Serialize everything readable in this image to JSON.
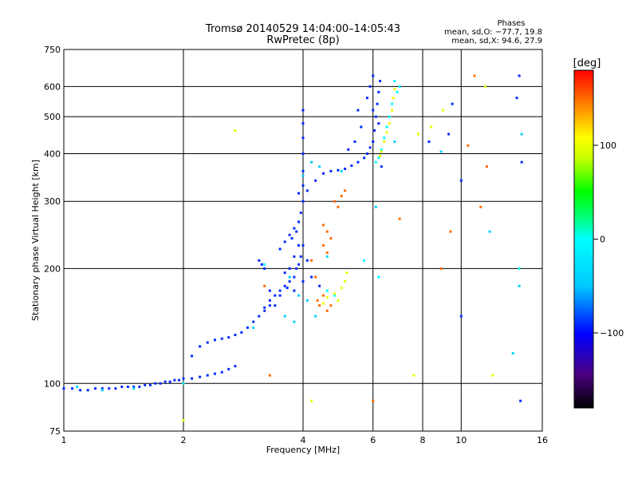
{
  "chart_data": {
    "type": "scatter",
    "title": "Tromsø 20140529 14:04:00–14:05:43",
    "subtitle": "RwPretec (8p)",
    "xlabel": "Frequency [MHz]",
    "ylabel": "Stationary phase Virtual Height [km]",
    "x_scale": "log",
    "y_scale": "log",
    "xlim": [
      1,
      16
    ],
    "ylim": [
      75,
      750
    ],
    "x_ticks": [
      1,
      2,
      4,
      6,
      8,
      10,
      16
    ],
    "x_tick_labels": [
      "1",
      "2",
      "4",
      "6",
      "8",
      "10",
      "16"
    ],
    "y_ticks": [
      75,
      100,
      200,
      300,
      400,
      500,
      600,
      750
    ],
    "y_tick_labels": [
      "75",
      "100",
      "200",
      "300",
      "400",
      "500",
      "600",
      "750"
    ],
    "grid": true,
    "phases": {
      "heading": "Phases",
      "line1": "mean, sd,O: −77.7, 19.8",
      "line2": "mean, sd,X:  94.6, 27.9"
    },
    "colorbar": {
      "label": "[deg]",
      "range": [
        -180,
        180
      ],
      "tick_values": [
        100,
        0,
        -100
      ],
      "tick_labels": [
        "100",
        "0",
        "−100"
      ]
    },
    "series": [
      {
        "color_phase": -90,
        "points": [
          [
            1.0,
            97
          ],
          [
            1.05,
            97
          ],
          [
            1.1,
            96
          ],
          [
            1.15,
            96
          ],
          [
            1.2,
            97
          ],
          [
            1.25,
            97
          ],
          [
            1.3,
            97
          ],
          [
            1.35,
            97
          ],
          [
            1.4,
            98
          ],
          [
            1.45,
            98
          ],
          [
            1.5,
            98
          ],
          [
            1.55,
            98
          ],
          [
            1.6,
            99
          ],
          [
            1.65,
            99
          ],
          [
            1.7,
            100
          ],
          [
            1.75,
            100
          ],
          [
            1.8,
            101
          ],
          [
            1.85,
            101
          ],
          [
            1.9,
            102
          ],
          [
            1.95,
            102
          ],
          [
            2.0,
            103
          ],
          [
            2.1,
            103
          ],
          [
            2.2,
            104
          ],
          [
            2.3,
            105
          ],
          [
            2.4,
            106
          ],
          [
            2.5,
            107
          ],
          [
            2.6,
            109
          ],
          [
            2.7,
            111
          ],
          [
            2.1,
            118
          ],
          [
            2.2,
            125
          ],
          [
            2.3,
            128
          ],
          [
            2.4,
            130
          ],
          [
            2.5,
            131
          ],
          [
            2.6,
            132
          ],
          [
            2.7,
            134
          ],
          [
            2.8,
            136
          ],
          [
            2.9,
            140
          ],
          [
            3.0,
            145
          ],
          [
            3.1,
            150
          ],
          [
            3.2,
            158
          ],
          [
            3.3,
            165
          ],
          [
            3.4,
            170
          ],
          [
            3.5,
            175
          ],
          [
            3.6,
            180
          ],
          [
            3.7,
            185
          ],
          [
            3.8,
            190
          ],
          [
            3.85,
            200
          ],
          [
            3.9,
            205
          ],
          [
            3.1,
            210
          ],
          [
            3.15,
            205
          ],
          [
            3.2,
            200
          ],
          [
            3.5,
            225
          ],
          [
            3.6,
            235
          ],
          [
            3.7,
            245
          ],
          [
            3.8,
            255
          ],
          [
            3.9,
            265
          ],
          [
            3.95,
            280
          ],
          [
            4.0,
            300
          ],
          [
            4.0,
            330
          ],
          [
            4.0,
            360
          ],
          [
            4.0,
            400
          ],
          [
            4.0,
            440
          ],
          [
            4.0,
            480
          ],
          [
            4.0,
            520
          ],
          [
            4.1,
            320
          ],
          [
            4.3,
            340
          ],
          [
            4.5,
            355
          ],
          [
            4.7,
            360
          ],
          [
            4.9,
            362
          ],
          [
            5.1,
            365
          ],
          [
            5.3,
            372
          ],
          [
            5.5,
            380
          ],
          [
            5.7,
            390
          ],
          [
            5.8,
            400
          ],
          [
            5.9,
            415
          ],
          [
            6.0,
            430
          ],
          [
            6.05,
            460
          ],
          [
            6.1,
            500
          ],
          [
            6.15,
            540
          ],
          [
            6.2,
            580
          ],
          [
            6.25,
            620
          ],
          [
            6.0,
            640
          ],
          [
            5.8,
            560
          ],
          [
            5.6,
            470
          ],
          [
            5.4,
            430
          ],
          [
            5.2,
            410
          ],
          [
            3.7,
            200
          ],
          [
            3.6,
            195
          ],
          [
            3.4,
            160
          ],
          [
            3.3,
            160
          ],
          [
            3.2,
            155
          ],
          [
            3.8,
            215
          ],
          [
            3.9,
            230
          ],
          [
            4.1,
            210
          ],
          [
            4.2,
            190
          ],
          [
            4.0,
            185
          ],
          [
            3.5,
            170
          ],
          [
            3.65,
            178
          ],
          [
            4.4,
            180
          ],
          [
            3.8,
            175
          ],
          [
            3.3,
            175
          ],
          [
            3.75,
            240
          ],
          [
            3.85,
            250
          ],
          [
            3.95,
            215
          ],
          [
            6.3,
            370
          ],
          [
            6.2,
            480
          ],
          [
            6.0,
            520
          ],
          [
            5.9,
            600
          ],
          [
            5.5,
            520
          ],
          [
            9.5,
            540
          ],
          [
            10.0,
            150
          ],
          [
            13.8,
            560
          ],
          [
            14.0,
            640
          ],
          [
            14.1,
            90
          ],
          [
            14.2,
            380
          ],
          [
            8.3,
            430
          ],
          [
            9.3,
            450
          ],
          [
            10.0,
            340
          ],
          [
            4.0,
            230
          ],
          [
            3.9,
            315
          ]
        ]
      },
      {
        "color_phase": -40,
        "points": [
          [
            1.08,
            98
          ],
          [
            1.25,
            96
          ],
          [
            1.5,
            97
          ],
          [
            3.0,
            140
          ],
          [
            3.6,
            150
          ],
          [
            3.8,
            145
          ],
          [
            4.1,
            165
          ],
          [
            4.3,
            150
          ],
          [
            4.6,
            215
          ],
          [
            4.2,
            380
          ],
          [
            4.4,
            370
          ],
          [
            5.0,
            360
          ],
          [
            3.7,
            190
          ],
          [
            3.9,
            170
          ],
          [
            6.8,
            430
          ],
          [
            14.0,
            180
          ],
          [
            14.2,
            450
          ],
          [
            13.5,
            120
          ],
          [
            8.9,
            405
          ],
          [
            11.8,
            250
          ],
          [
            6.1,
            290
          ],
          [
            4.0,
            350
          ]
        ]
      },
      {
        "color_phase": 0,
        "points": [
          [
            6.7,
            540
          ],
          [
            6.6,
            500
          ],
          [
            6.5,
            470
          ],
          [
            6.4,
            440
          ],
          [
            6.3,
            410
          ],
          [
            6.2,
            390
          ],
          [
            6.1,
            380
          ],
          [
            6.9,
            580
          ],
          [
            7.0,
            600
          ],
          [
            3.2,
            205
          ],
          [
            6.2,
            190
          ],
          [
            5.7,
            210
          ],
          [
            4.6,
            175
          ],
          [
            4.8,
            170
          ],
          [
            2.0,
            100
          ],
          [
            14.0,
            200
          ],
          [
            6.8,
            620
          ]
        ]
      },
      {
        "color_phase": 100,
        "points": [
          [
            6.8,
            590
          ],
          [
            6.75,
            560
          ],
          [
            6.7,
            520
          ],
          [
            6.6,
            480
          ],
          [
            6.5,
            455
          ],
          [
            6.4,
            430
          ],
          [
            6.3,
            405
          ],
          [
            6.25,
            395
          ],
          [
            4.6,
            168
          ],
          [
            4.8,
            172
          ],
          [
            5.0,
            178
          ],
          [
            5.1,
            185
          ],
          [
            5.15,
            195
          ],
          [
            4.9,
            165
          ],
          [
            4.5,
            162
          ],
          [
            2.7,
            460
          ],
          [
            2.0,
            80
          ],
          [
            7.8,
            450
          ],
          [
            8.4,
            470
          ],
          [
            9.0,
            520
          ],
          [
            11.5,
            600
          ],
          [
            12.0,
            105
          ],
          [
            7.6,
            105
          ],
          [
            4.2,
            90
          ]
        ]
      },
      {
        "color_phase": 150,
        "points": [
          [
            4.4,
            160
          ],
          [
            4.6,
            155
          ],
          [
            4.7,
            160
          ],
          [
            4.5,
            170
          ],
          [
            4.35,
            165
          ],
          [
            4.5,
            260
          ],
          [
            4.6,
            250
          ],
          [
            4.7,
            240
          ],
          [
            4.5,
            230
          ],
          [
            4.6,
            220
          ],
          [
            4.8,
            300
          ],
          [
            4.9,
            290
          ],
          [
            5.0,
            310
          ],
          [
            5.1,
            320
          ],
          [
            4.3,
            190
          ],
          [
            4.2,
            210
          ],
          [
            7.0,
            270
          ],
          [
            9.4,
            250
          ],
          [
            10.4,
            420
          ],
          [
            11.6,
            370
          ],
          [
            11.2,
            290
          ],
          [
            6.0,
            90
          ],
          [
            3.2,
            180
          ],
          [
            3.3,
            105
          ],
          [
            10.8,
            640
          ],
          [
            8.9,
            200
          ]
        ]
      }
    ]
  }
}
